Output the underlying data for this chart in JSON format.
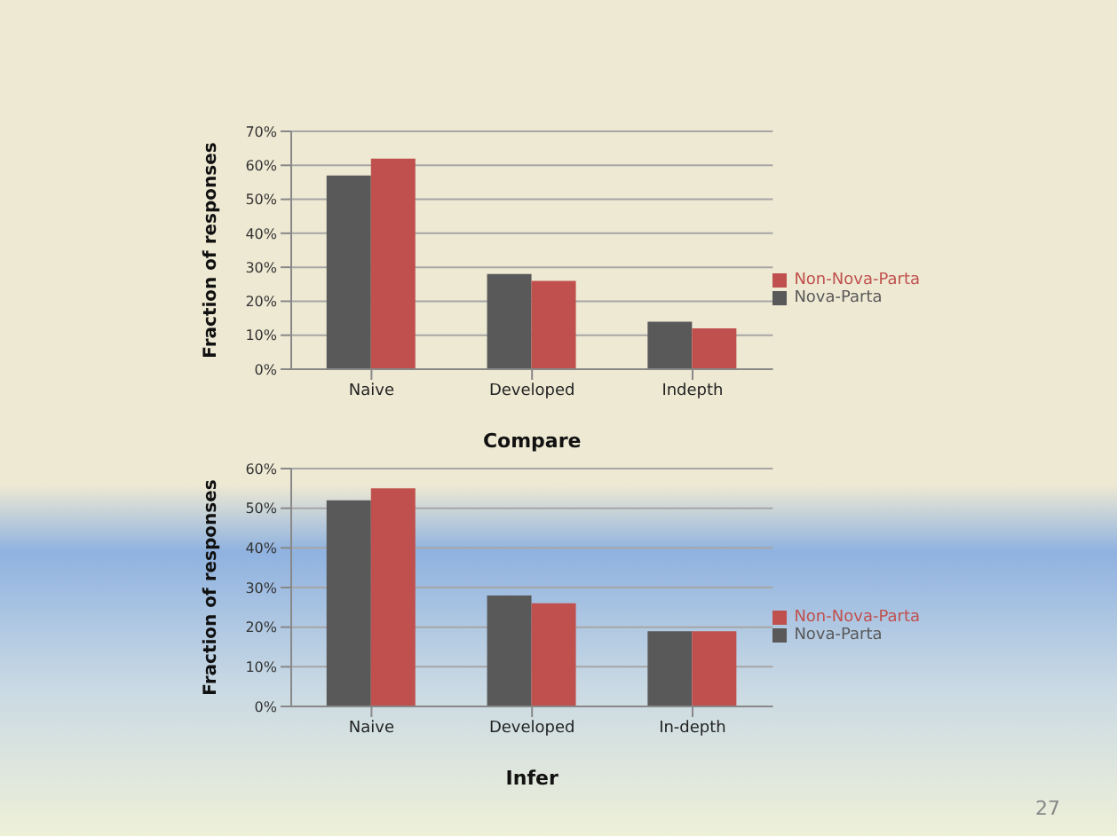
{
  "chart_data": [
    {
      "type": "bar",
      "xlabel": "Compare",
      "ylabel": "Fraction of responses",
      "categories": [
        "Naive",
        "Developed",
        "Indepth"
      ],
      "series": [
        {
          "name": "Nova-Parta",
          "color": "#595959",
          "values": [
            57,
            28,
            14
          ]
        },
        {
          "name": "Non-Nova-Parta",
          "color": "#c0504d",
          "values": [
            62,
            26,
            12
          ]
        }
      ],
      "ylim": [
        0,
        70
      ],
      "yticks": [
        {
          "value": 0,
          "label": "0%"
        },
        {
          "value": 10,
          "label": "10%"
        },
        {
          "value": 20,
          "label": "20%"
        },
        {
          "value": 30,
          "label": "30%"
        },
        {
          "value": 40,
          "label": "40%"
        },
        {
          "value": 50,
          "label": "50%"
        },
        {
          "value": 60,
          "label": "60%"
        },
        {
          "value": 70,
          "label": "70%"
        }
      ],
      "grid": "y",
      "legend": "right"
    },
    {
      "type": "bar",
      "xlabel": "Infer",
      "ylabel": "Fraction of responses",
      "categories": [
        "Naive",
        "Developed",
        "In-depth"
      ],
      "series": [
        {
          "name": "Nova-Parta",
          "color": "#595959",
          "values": [
            52,
            28,
            19
          ]
        },
        {
          "name": "Non-Nova-Parta",
          "color": "#c0504d",
          "values": [
            55,
            26,
            19
          ]
        }
      ],
      "ylim": [
        0,
        60
      ],
      "yticks": [
        {
          "value": 0,
          "label": "0%"
        },
        {
          "value": 10,
          "label": "10%"
        },
        {
          "value": 20,
          "label": "20%"
        },
        {
          "value": 30,
          "label": "30%"
        },
        {
          "value": 40,
          "label": "40%"
        },
        {
          "value": 50,
          "label": "50%"
        },
        {
          "value": 60,
          "label": "60%"
        }
      ],
      "grid": "y",
      "legend": "right",
      "annotations": [
        "27"
      ]
    }
  ]
}
